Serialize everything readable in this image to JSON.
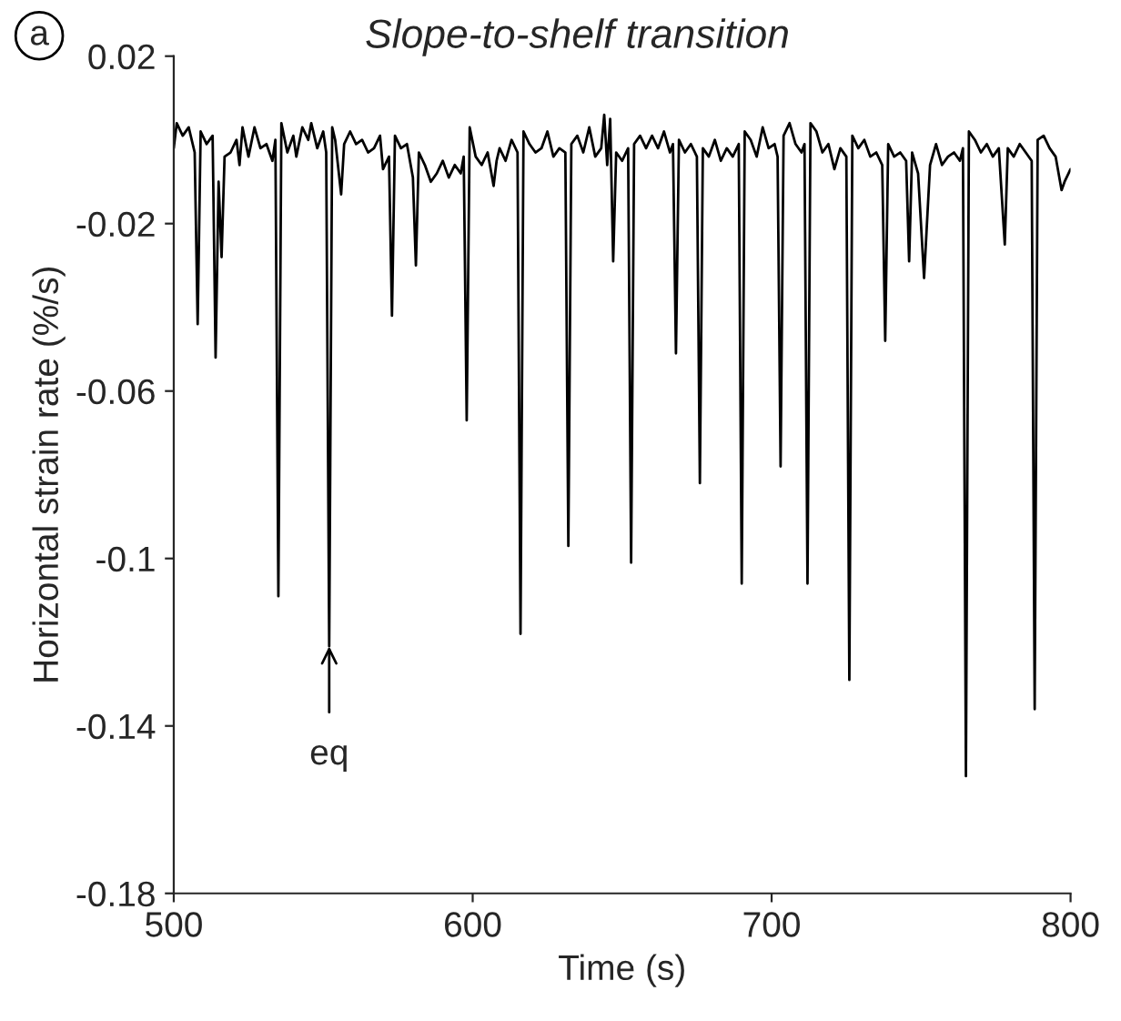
{
  "chart_data": {
    "type": "line",
    "title": "Slope-to-shelf transition",
    "xlabel": "Time (s)",
    "ylabel": "Horizontal strain rate (%/s)",
    "annotations": [
      "a",
      {
        "text": "eq",
        "x": 552,
        "y": -0.121
      }
    ],
    "xlim": [
      500,
      800
    ],
    "xticks": [
      500,
      600,
      700,
      800
    ],
    "ylim": [
      -0.18,
      0.02
    ],
    "yticks": [
      0.02,
      -0.02,
      -0.06,
      -0.1,
      -0.14,
      -0.18
    ],
    "grid": false,
    "marker": "none",
    "line_style": "solid",
    "series": [
      {
        "color": "#000000",
        "x": [
          500,
          501,
          503,
          505,
          507,
          508,
          509,
          511,
          513,
          514,
          515,
          516,
          517,
          519,
          521,
          522,
          523,
          525,
          527,
          529,
          531,
          533,
          534,
          535,
          536,
          538,
          540,
          541,
          543,
          545,
          546,
          548,
          550,
          551,
          552,
          553,
          554,
          556,
          557,
          559,
          561,
          563,
          565,
          567,
          569,
          570,
          572,
          573,
          574,
          576,
          578,
          580,
          581,
          582,
          584,
          586,
          588,
          590,
          592,
          594,
          596,
          597,
          598,
          599,
          601,
          603,
          605,
          607,
          608,
          609,
          611,
          613,
          615,
          616,
          617,
          619,
          621,
          623,
          625,
          627,
          629,
          631,
          632,
          633,
          635,
          637,
          639,
          641,
          643,
          644,
          645,
          646,
          647,
          648,
          650,
          652,
          653,
          654,
          656,
          658,
          660,
          662,
          664,
          666,
          667,
          668,
          669,
          671,
          673,
          675,
          676,
          677,
          679,
          681,
          683,
          685,
          687,
          689,
          690,
          691,
          693,
          695,
          697,
          699,
          701,
          702,
          703,
          704,
          706,
          708,
          710,
          711,
          712,
          713,
          715,
          717,
          719,
          721,
          723,
          725,
          726,
          727,
          729,
          731,
          733,
          735,
          737,
          738,
          739,
          741,
          743,
          745,
          746,
          747,
          749,
          751,
          753,
          755,
          757,
          759,
          761,
          763,
          764,
          765,
          766,
          768,
          770,
          772,
          774,
          776,
          778,
          779,
          781,
          783,
          785,
          787,
          788,
          789,
          791,
          793,
          795,
          797,
          798,
          800
        ],
        "values": [
          -0.002,
          0.004,
          0.001,
          0.003,
          -0.003,
          -0.044,
          0.002,
          -0.001,
          0.001,
          -0.052,
          -0.01,
          -0.028,
          -0.004,
          -0.003,
          0.0,
          -0.006,
          0.003,
          -0.004,
          0.003,
          -0.002,
          -0.001,
          -0.005,
          0.0,
          -0.109,
          0.004,
          -0.003,
          0.001,
          -0.004,
          0.003,
          0.0,
          0.004,
          -0.002,
          0.002,
          -0.003,
          -0.121,
          0.003,
          0.0,
          -0.013,
          -0.001,
          0.002,
          -0.001,
          0.0,
          -0.003,
          -0.002,
          0.001,
          -0.007,
          -0.004,
          -0.042,
          0.001,
          -0.002,
          -0.001,
          -0.009,
          -0.03,
          -0.003,
          -0.006,
          -0.01,
          -0.008,
          -0.005,
          -0.009,
          -0.006,
          -0.008,
          -0.004,
          -0.067,
          0.003,
          -0.004,
          -0.006,
          -0.003,
          -0.011,
          -0.005,
          -0.002,
          -0.005,
          0.0,
          -0.003,
          -0.118,
          0.002,
          -0.001,
          -0.003,
          -0.002,
          0.002,
          -0.004,
          -0.002,
          -0.003,
          -0.097,
          -0.001,
          0.001,
          -0.003,
          0.003,
          -0.004,
          -0.002,
          0.006,
          -0.006,
          0.005,
          -0.029,
          -0.003,
          -0.005,
          -0.002,
          -0.101,
          -0.001,
          0.001,
          -0.002,
          0.001,
          -0.002,
          0.002,
          -0.003,
          -0.001,
          -0.051,
          0.0,
          -0.003,
          -0.001,
          -0.004,
          -0.082,
          -0.002,
          -0.004,
          0.0,
          -0.005,
          -0.002,
          -0.004,
          -0.001,
          -0.106,
          0.002,
          0.0,
          -0.004,
          0.003,
          -0.002,
          -0.001,
          -0.004,
          -0.078,
          0.001,
          0.004,
          -0.001,
          -0.003,
          -0.001,
          -0.106,
          0.004,
          0.002,
          -0.003,
          -0.001,
          -0.007,
          -0.002,
          -0.004,
          -0.129,
          0.001,
          -0.002,
          0.0,
          -0.004,
          -0.003,
          -0.006,
          -0.048,
          -0.001,
          -0.004,
          -0.003,
          -0.005,
          -0.029,
          -0.003,
          -0.008,
          -0.033,
          -0.006,
          -0.001,
          -0.006,
          -0.004,
          -0.003,
          -0.005,
          -0.002,
          -0.152,
          0.002,
          0.0,
          -0.003,
          -0.001,
          -0.004,
          -0.002,
          -0.025,
          -0.002,
          -0.004,
          -0.001,
          -0.003,
          -0.005,
          -0.136,
          0.0,
          0.001,
          -0.002,
          -0.004,
          -0.012,
          -0.01,
          -0.007
        ]
      }
    ]
  }
}
